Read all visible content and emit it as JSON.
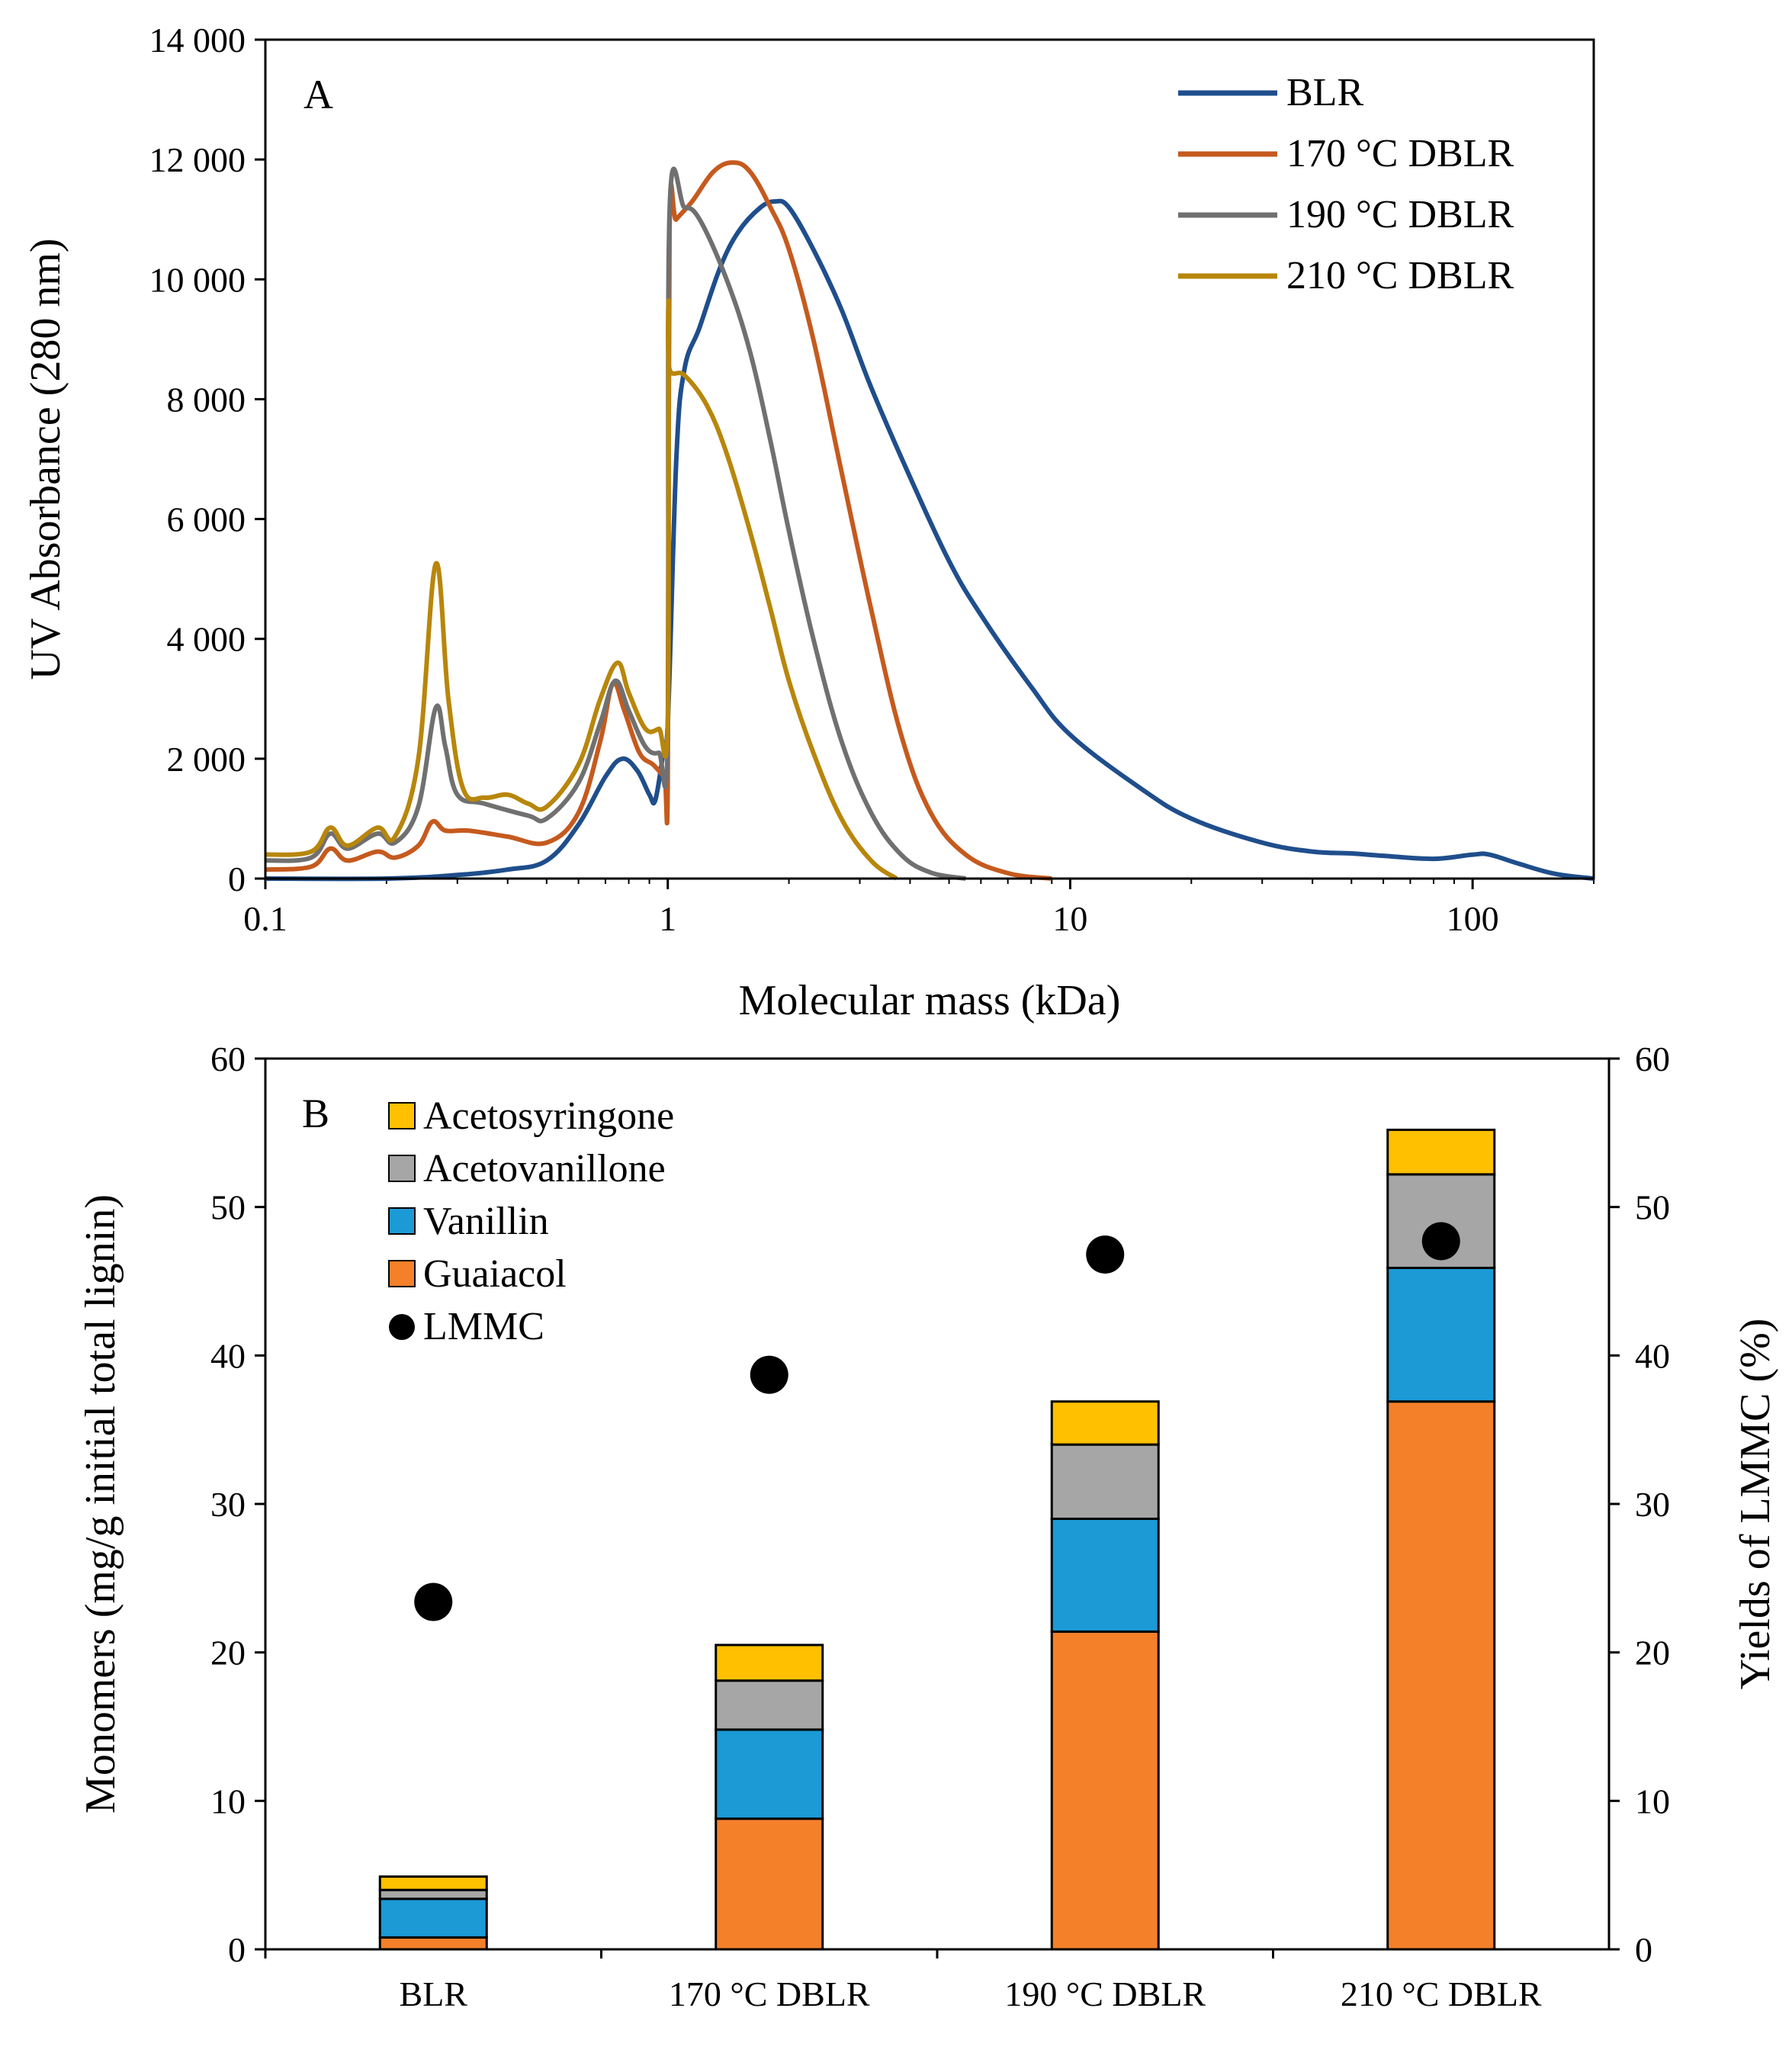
{
  "chart_data": [
    {
      "type": "line",
      "panel_label": "A",
      "title": "",
      "xlabel": "Molecular mass (kDa)",
      "ylabel": "UV Absorbance  (280 nm)",
      "xscale": "log",
      "xlim": [
        0.1,
        200
      ],
      "ylim": [
        0,
        14000
      ],
      "x_ticks": [
        0.1,
        1,
        10,
        100
      ],
      "x_tick_labels": [
        "0.1",
        "1",
        "10",
        "100"
      ],
      "y_ticks": [
        0,
        2000,
        4000,
        6000,
        8000,
        10000,
        12000,
        14000
      ],
      "y_tick_labels": [
        "0",
        "2 000",
        "4 000",
        "6 000",
        "8 000",
        "10 000",
        "12 000",
        "14 000"
      ],
      "legend_position": "top-right",
      "series": [
        {
          "name": "BLR",
          "color": "#1f4e8c",
          "points": [
            [
              0.1,
              0
            ],
            [
              0.2,
              0
            ],
            [
              0.3,
              60
            ],
            [
              0.4,
              150
            ],
            [
              0.5,
              300
            ],
            [
              0.6,
              900
            ],
            [
              0.7,
              1700
            ],
            [
              0.77,
              2000
            ],
            [
              0.84,
              1800
            ],
            [
              0.9,
              1400
            ],
            [
              0.93,
              1300
            ],
            [
              0.97,
              2000
            ],
            [
              1.0,
              2600
            ],
            [
              1.05,
              7000
            ],
            [
              1.1,
              8500
            ],
            [
              1.2,
              9200
            ],
            [
              1.35,
              10200
            ],
            [
              1.5,
              10800
            ],
            [
              1.7,
              11200
            ],
            [
              1.85,
              11300
            ],
            [
              2.0,
              11200
            ],
            [
              2.3,
              10500
            ],
            [
              2.7,
              9500
            ],
            [
              3.2,
              8200
            ],
            [
              4,
              6700
            ],
            [
              5,
              5300
            ],
            [
              6,
              4400
            ],
            [
              8,
              3200
            ],
            [
              10,
              2400
            ],
            [
              15,
              1500
            ],
            [
              20,
              1000
            ],
            [
              30,
              600
            ],
            [
              40,
              450
            ],
            [
              50,
              420
            ],
            [
              60,
              380
            ],
            [
              80,
              330
            ],
            [
              100,
              400
            ],
            [
              110,
              400
            ],
            [
              130,
              250
            ],
            [
              160,
              80
            ],
            [
              200,
              0
            ]
          ]
        },
        {
          "name": "170 °C DBLR",
          "color": "#c55a1e",
          "points": [
            [
              0.1,
              150
            ],
            [
              0.13,
              200
            ],
            [
              0.145,
              500
            ],
            [
              0.16,
              300
            ],
            [
              0.19,
              450
            ],
            [
              0.21,
              350
            ],
            [
              0.24,
              550
            ],
            [
              0.26,
              950
            ],
            [
              0.28,
              800
            ],
            [
              0.32,
              800
            ],
            [
              0.4,
              700
            ],
            [
              0.5,
              600
            ],
            [
              0.6,
              1100
            ],
            [
              0.68,
              2300
            ],
            [
              0.73,
              3250
            ],
            [
              0.78,
              2800
            ],
            [
              0.85,
              2100
            ],
            [
              0.92,
              1900
            ],
            [
              0.98,
              1700
            ],
            [
              1.0,
              1650
            ],
            [
              1.01,
              10800
            ],
            [
              1.05,
              11000
            ],
            [
              1.15,
              11300
            ],
            [
              1.3,
              11800
            ],
            [
              1.45,
              11950
            ],
            [
              1.6,
              11800
            ],
            [
              1.8,
              11200
            ],
            [
              2.0,
              10500
            ],
            [
              2.3,
              9000
            ],
            [
              2.7,
              6800
            ],
            [
              3.2,
              4500
            ],
            [
              3.8,
              2400
            ],
            [
              4.5,
              1100
            ],
            [
              5.5,
              400
            ],
            [
              7,
              90
            ],
            [
              9,
              0
            ]
          ]
        },
        {
          "name": "190 °C DBLR",
          "color": "#707070",
          "points": [
            [
              0.1,
              300
            ],
            [
              0.13,
              350
            ],
            [
              0.145,
              750
            ],
            [
              0.16,
              500
            ],
            [
              0.19,
              750
            ],
            [
              0.21,
              600
            ],
            [
              0.24,
              1200
            ],
            [
              0.265,
              2850
            ],
            [
              0.28,
              2200
            ],
            [
              0.3,
              1400
            ],
            [
              0.35,
              1250
            ],
            [
              0.45,
              1050
            ],
            [
              0.5,
              1000
            ],
            [
              0.6,
              1600
            ],
            [
              0.68,
              2600
            ],
            [
              0.74,
              3300
            ],
            [
              0.8,
              2800
            ],
            [
              0.88,
              2200
            ],
            [
              0.95,
              2100
            ],
            [
              1.0,
              2300
            ],
            [
              1.01,
              11100
            ],
            [
              1.1,
              11200
            ],
            [
              1.2,
              11000
            ],
            [
              1.4,
              10000
            ],
            [
              1.6,
              8800
            ],
            [
              1.8,
              7300
            ],
            [
              2.0,
              5800
            ],
            [
              2.3,
              4000
            ],
            [
              2.7,
              2300
            ],
            [
              3.2,
              1100
            ],
            [
              3.8,
              400
            ],
            [
              4.5,
              100
            ],
            [
              5.5,
              0
            ]
          ]
        },
        {
          "name": "210 °C DBLR",
          "color": "#b8860b",
          "points": [
            [
              0.1,
              400
            ],
            [
              0.13,
              450
            ],
            [
              0.145,
              850
            ],
            [
              0.16,
              550
            ],
            [
              0.19,
              850
            ],
            [
              0.21,
              700
            ],
            [
              0.24,
              2000
            ],
            [
              0.265,
              5250
            ],
            [
              0.285,
              3000
            ],
            [
              0.31,
              1500
            ],
            [
              0.35,
              1350
            ],
            [
              0.4,
              1400
            ],
            [
              0.45,
              1250
            ],
            [
              0.5,
              1200
            ],
            [
              0.6,
              1900
            ],
            [
              0.68,
              3000
            ],
            [
              0.75,
              3600
            ],
            [
              0.8,
              3100
            ],
            [
              0.88,
              2500
            ],
            [
              0.95,
              2500
            ],
            [
              1.0,
              2600
            ],
            [
              1.005,
              9300
            ],
            [
              1.01,
              8500
            ],
            [
              1.1,
              8400
            ],
            [
              1.25,
              7900
            ],
            [
              1.4,
              7100
            ],
            [
              1.6,
              5800
            ],
            [
              1.8,
              4500
            ],
            [
              2.0,
              3300
            ],
            [
              2.3,
              2100
            ],
            [
              2.7,
              1000
            ],
            [
              3.2,
              300
            ],
            [
              3.7,
              0
            ]
          ]
        }
      ]
    },
    {
      "type": "bar",
      "stacked": true,
      "panel_label": "B",
      "title": "",
      "xlabel": "",
      "ylabel": "Monomers (mg/g initial total lignin)",
      "y2label": "Yields of LMMC  (%)",
      "categories": [
        "BLR",
        "170 °C DBLR",
        "190 °C DBLR",
        "210 °C DBLR"
      ],
      "ylim": [
        0,
        60
      ],
      "y2lim": [
        0,
        60
      ],
      "y_ticks": [
        0,
        10,
        20,
        30,
        40,
        50,
        60
      ],
      "y_tick_labels": [
        "0",
        "10",
        "20",
        "30",
        "40",
        "50",
        "60"
      ],
      "y2_ticks": [
        0,
        10,
        20,
        30,
        40,
        50,
        60
      ],
      "y2_tick_labels": [
        "0",
        "10",
        "20",
        "30",
        "40",
        "50",
        "60"
      ],
      "legend_position": "top-left",
      "series": [
        {
          "name": "Guaiacol",
          "color": "#f5802a",
          "values": [
            0.8,
            8.8,
            21.4,
            36.9
          ]
        },
        {
          "name": "Vanillin",
          "color": "#1b9ad6",
          "values": [
            2.6,
            6.0,
            7.6,
            9.0
          ]
        },
        {
          "name": "Acetovanillone",
          "color": "#a6a6a6",
          "values": [
            0.6,
            3.3,
            5.0,
            6.3
          ]
        },
        {
          "name": "Acetosyringone",
          "color": "#ffc000",
          "values": [
            0.9,
            2.4,
            2.9,
            3.0
          ]
        }
      ],
      "legend_order": [
        "Acetosyringone",
        "Acetovanillone",
        "Vanillin",
        "Guaiacol",
        "LMMC"
      ],
      "scatter_series": {
        "name": "LMMC",
        "axis": "right",
        "color": "#000000",
        "values": [
          23.4,
          38.7,
          46.8,
          47.7
        ]
      }
    }
  ]
}
